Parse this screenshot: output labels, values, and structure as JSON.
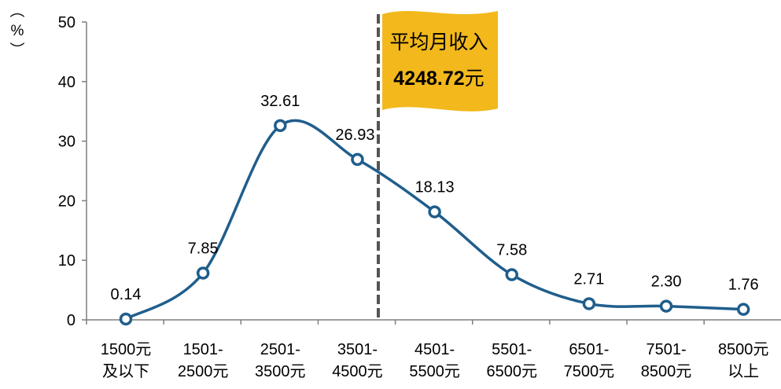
{
  "chart_data": {
    "type": "line",
    "ylabel": "（%）",
    "ylim": [
      0,
      50
    ],
    "yticks": [
      0,
      10,
      20,
      30,
      40,
      50
    ],
    "categories": [
      [
        "1500元",
        "及以下"
      ],
      [
        "1501-",
        "2500元"
      ],
      [
        "2501-",
        "3500元"
      ],
      [
        "3501-",
        "4500元"
      ],
      [
        "4501-",
        "5500元"
      ],
      [
        "5501-",
        "6500元"
      ],
      [
        "6501-",
        "7500元"
      ],
      [
        "7501-",
        "8500元"
      ],
      [
        "8500元",
        "以上"
      ]
    ],
    "values": [
      0.14,
      7.85,
      32.61,
      26.93,
      18.13,
      7.58,
      2.71,
      2.3,
      1.76
    ],
    "data_labels": [
      "0.14",
      "7.85",
      "32.61",
      "26.93",
      "18.13",
      "7.58",
      "2.71",
      "2.30",
      "1.76"
    ],
    "smooth": true,
    "grid": false,
    "annotation": {
      "kind": "flag",
      "title": "平均月收入",
      "value": "4248.72",
      "unit": "元",
      "x_position_income": 4248.72
    },
    "colors": {
      "line": "#1f5e8c",
      "marker_fill": "#ffffff",
      "marker_stroke": "#1f5e8c",
      "axis": "#7f7f7f",
      "flag": "#f2b81c",
      "dashed_line": "#555555",
      "text": "#000000"
    }
  }
}
